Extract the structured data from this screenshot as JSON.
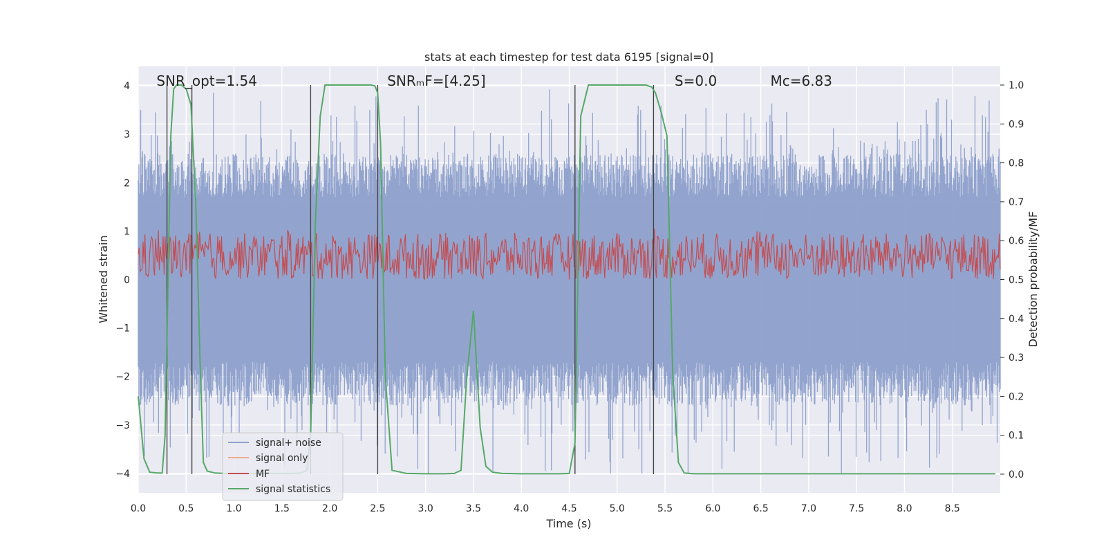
{
  "chart_data": {
    "type": "line",
    "title": "stats at each timestep for test data 6195 [signal=0]",
    "xlabel": "Time (s)",
    "ylabel": "Whitened strain",
    "y2label": "Detection probability/MF",
    "xlim": [
      0,
      9
    ],
    "ylim": [
      -4.4,
      4.4
    ],
    "y2lim": [
      -0.048,
      1.048
    ],
    "xticks": [
      0.0,
      0.5,
      1.0,
      1.5,
      2.0,
      2.5,
      3.0,
      3.5,
      4.0,
      4.5,
      5.0,
      5.5,
      6.0,
      6.5,
      7.0,
      7.5,
      8.0,
      8.5
    ],
    "xtick_labels": [
      "0.0",
      "0.5",
      "1.0",
      "1.5",
      "2.0",
      "2.5",
      "3.0",
      "3.5",
      "4.0",
      "4.5",
      "5.0",
      "5.5",
      "6.0",
      "6.5",
      "7.0",
      "7.5",
      "8.0",
      "8.5"
    ],
    "yticks": [
      -4,
      -3,
      -2,
      -1,
      0,
      1,
      2,
      3,
      4
    ],
    "ytick_labels": [
      "−4",
      "−3",
      "−2",
      "−1",
      "0",
      "1",
      "2",
      "3",
      "4"
    ],
    "y2ticks": [
      0.0,
      0.1,
      0.2,
      0.3,
      0.4,
      0.5,
      0.6,
      0.7,
      0.8,
      0.9,
      1.0
    ],
    "y2tick_labels": [
      "0.0",
      "0.1",
      "0.2",
      "0.3",
      "0.4",
      "0.5",
      "0.6",
      "0.7",
      "0.8",
      "0.9",
      "1.0"
    ],
    "grid": true,
    "legend_position": "bottom-left",
    "annotations": [
      {
        "id": "snr-opt",
        "text": "SNR_opt=1.54",
        "x": 0.19
      },
      {
        "id": "snr-mf",
        "text": "SNRₘF=[4.25]",
        "x": 2.6
      },
      {
        "id": "s-stat",
        "text": "S=0.0",
        "x": 5.6
      },
      {
        "id": "mc",
        "text": "Mᴄ=6.83",
        "x": 6.6
      }
    ],
    "vlines": [
      0.3,
      0.56,
      1.8,
      2.5,
      4.56,
      5.38
    ],
    "series": [
      {
        "name": "signal+ noise",
        "color": "#8da0cb",
        "axis": "left",
        "kind": "noise",
        "amplitude_range": [
          -4.0,
          4.0
        ]
      },
      {
        "name": "signal only",
        "color": "#f0a98a",
        "axis": "left",
        "kind": "none",
        "values": []
      },
      {
        "name": "MF",
        "color": "#c44e52",
        "axis": "right",
        "kind": "noise",
        "range": [
          0.5,
          0.62
        ]
      },
      {
        "name": "signal statistics",
        "color": "#55a868",
        "axis": "right",
        "kind": "line",
        "x": [
          0.0,
          0.06,
          0.12,
          0.2,
          0.25,
          0.28,
          0.3,
          0.34,
          0.37,
          0.4,
          0.45,
          0.5,
          0.55,
          0.6,
          0.65,
          0.68,
          0.72,
          0.8,
          0.9,
          1.0,
          1.2,
          1.4,
          1.6,
          1.7,
          1.76,
          1.8,
          1.85,
          1.9,
          1.95,
          2.05,
          2.2,
          2.35,
          2.43,
          2.47,
          2.5,
          2.53,
          2.58,
          2.65,
          2.8,
          3.0,
          3.2,
          3.3,
          3.37,
          3.43,
          3.5,
          3.57,
          3.63,
          3.7,
          3.8,
          4.0,
          4.2,
          4.4,
          4.5,
          4.56,
          4.62,
          4.7,
          4.8,
          5.0,
          5.2,
          5.3,
          5.36,
          5.4,
          5.46,
          5.52,
          5.58,
          5.64,
          5.7,
          5.8,
          6.0,
          7.0,
          8.0,
          8.95
        ],
        "values": [
          0.2,
          0.04,
          0.005,
          0.003,
          0.003,
          0.1,
          0.35,
          0.87,
          0.99,
          1.0,
          1.0,
          0.99,
          0.95,
          0.7,
          0.25,
          0.03,
          0.008,
          0.003,
          0.002,
          0.002,
          0.002,
          0.002,
          0.002,
          0.003,
          0.01,
          0.1,
          0.65,
          0.92,
          1.0,
          1.0,
          1.0,
          1.0,
          1.0,
          0.998,
          0.98,
          0.85,
          0.25,
          0.01,
          0.002,
          0.001,
          0.001,
          0.002,
          0.01,
          0.25,
          0.42,
          0.12,
          0.02,
          0.005,
          0.002,
          0.001,
          0.001,
          0.001,
          0.002,
          0.08,
          0.92,
          1.0,
          1.0,
          1.0,
          1.0,
          1.0,
          0.995,
          0.98,
          0.93,
          0.87,
          0.26,
          0.03,
          0.003,
          0.001,
          0.001,
          0.001,
          0.001,
          0.001
        ]
      }
    ]
  }
}
